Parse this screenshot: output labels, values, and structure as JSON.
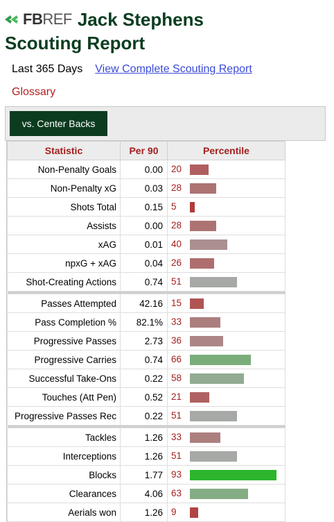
{
  "brand": {
    "logo_part1": "FB",
    "logo_part2": "REF"
  },
  "player": {
    "name": "Jack Stephens",
    "report_title": "Scouting Report"
  },
  "meta": {
    "period": "Last 365 Days",
    "full_report_link": "View Complete Scouting Report",
    "glossary_link": "Glossary"
  },
  "tab": {
    "active_label": "vs. Center Backs"
  },
  "table": {
    "headers": {
      "statistic": "Statistic",
      "per90": "Per 90",
      "percentile": "Percentile"
    },
    "groups": [
      [
        {
          "stat": "Non-Penalty Goals",
          "per90": "0.00",
          "percentile": 20
        },
        {
          "stat": "Non-Penalty xG",
          "per90": "0.03",
          "percentile": 28
        },
        {
          "stat": "Shots Total",
          "per90": "0.15",
          "percentile": 5
        },
        {
          "stat": "Assists",
          "per90": "0.00",
          "percentile": 28
        },
        {
          "stat": "xAG",
          "per90": "0.01",
          "percentile": 40
        },
        {
          "stat": "npxG + xAG",
          "per90": "0.04",
          "percentile": 26
        },
        {
          "stat": "Shot-Creating Actions",
          "per90": "0.74",
          "percentile": 51
        }
      ],
      [
        {
          "stat": "Passes Attempted",
          "per90": "42.16",
          "percentile": 15
        },
        {
          "stat": "Pass Completion %",
          "per90": "82.1%",
          "percentile": 33
        },
        {
          "stat": "Progressive Passes",
          "per90": "2.73",
          "percentile": 36
        },
        {
          "stat": "Progressive Carries",
          "per90": "0.74",
          "percentile": 66
        },
        {
          "stat": "Successful Take-Ons",
          "per90": "0.22",
          "percentile": 58
        },
        {
          "stat": "Touches (Att Pen)",
          "per90": "0.52",
          "percentile": 21
        },
        {
          "stat": "Progressive Passes Rec",
          "per90": "0.22",
          "percentile": 51
        }
      ],
      [
        {
          "stat": "Tackles",
          "per90": "1.26",
          "percentile": 33
        },
        {
          "stat": "Interceptions",
          "per90": "1.26",
          "percentile": 51
        },
        {
          "stat": "Blocks",
          "per90": "1.77",
          "percentile": 93
        },
        {
          "stat": "Clearances",
          "per90": "4.06",
          "percentile": 63
        },
        {
          "stat": "Aerials won",
          "per90": "1.26",
          "percentile": 9
        }
      ]
    ]
  },
  "colors": {
    "title_green": "#0b3d20",
    "tab_green": "#0c3c1f",
    "percentile_red": "#a41e1e",
    "link_blue": "#3a4ad6",
    "bar_low": "#b23a3a",
    "bar_mid": "#a9a9a9",
    "bar_high": "#2db52d"
  }
}
